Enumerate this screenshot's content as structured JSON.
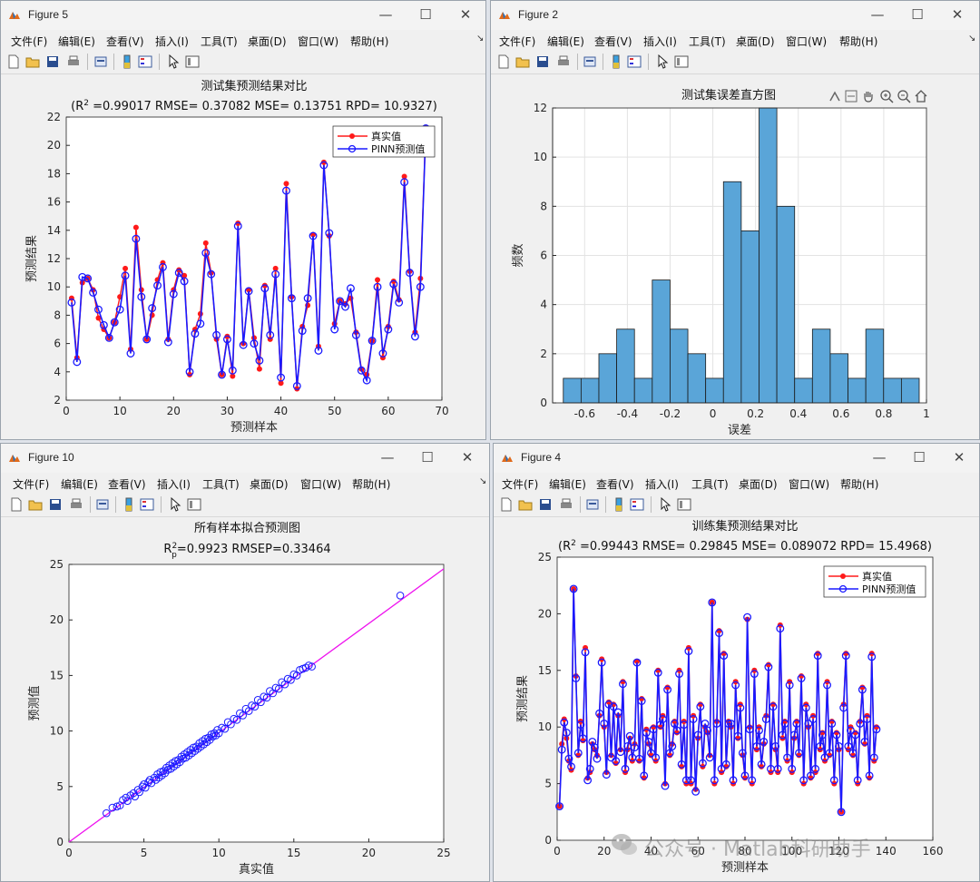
{
  "colors": {
    "real": "#ff1a1a",
    "pred": "#1a1aff",
    "hist": "#5aa5d8",
    "fitline": "#ee11ee"
  },
  "icons": [
    "app-icon",
    "minimize-icon",
    "maximize-icon",
    "close-icon",
    "new-file-icon",
    "open-file-icon",
    "save-icon",
    "print-icon",
    "print-preview-icon",
    "colorbar-icon",
    "legend-icon",
    "pointer-icon",
    "property-inspector-icon",
    "export-icon",
    "brush-icon",
    "pan-icon",
    "zoom-in-icon",
    "zoom-out-icon",
    "home-icon",
    "wechat-icon"
  ],
  "menus": [
    "文件(F)",
    "编辑(E)",
    "查看(V)",
    "插入(I)",
    "工具(T)",
    "桌面(D)",
    "窗口(W)",
    "帮助(H)"
  ],
  "windows": {
    "w1": {
      "title": "Figure 5"
    },
    "w2": {
      "title": "Figure 2"
    },
    "w3": {
      "title": "Figure 10"
    },
    "w4": {
      "title": "Figure 4"
    }
  },
  "controls": {
    "minimize": "—",
    "maximize": "☐",
    "close": "✕",
    "menu_arrow": "↘"
  },
  "watermark": {
    "text": "公众号 · Matlab科研助手"
  },
  "chart_data": [
    {
      "type": "line",
      "title": "测试集预测结果对比",
      "subtitle": {
        "prefix": "(R",
        "sup": "2",
        "rest": " =0.99017 RMSE= 0.37082 MSE= 0.13751 RPD= 10.9327)"
      },
      "xlabel": "预测样本",
      "ylabel": "预测结果",
      "xlim": [
        0,
        70
      ],
      "ylim": [
        2,
        22
      ],
      "xticks": [
        0,
        10,
        20,
        30,
        40,
        50,
        60,
        70
      ],
      "yticks": [
        2,
        4,
        6,
        8,
        10,
        12,
        14,
        16,
        18,
        20,
        22
      ],
      "legend": {
        "position": "top-right",
        "labels": [
          "真实值",
          "PINN预测值"
        ]
      },
      "series": [
        {
          "name": "真实值",
          "values": [
            9.2,
            5.0,
            10.3,
            10.6,
            9.8,
            7.8,
            7.0,
            6.4,
            7.5,
            9.3,
            11.3,
            5.6,
            14.2,
            9.8,
            6.3,
            8.0,
            10.5,
            11.7,
            6.3,
            9.8,
            11.2,
            10.8,
            3.8,
            7.0,
            8.1,
            13.1,
            11.0,
            6.3,
            3.8,
            6.5,
            3.7,
            14.5,
            6.0,
            9.8,
            6.4,
            4.2,
            10.1,
            6.3,
            11.3,
            3.2,
            17.3,
            9.3,
            2.8,
            7.2,
            8.7,
            13.7,
            5.8,
            18.8,
            13.6,
            7.4,
            9.0,
            8.8,
            9.2,
            6.8,
            4.2,
            3.8,
            6.2,
            10.5,
            5.0,
            7.2,
            10.4,
            9.1,
            17.8,
            11.1,
            6.8,
            10.6,
            21.2
          ]
        },
        {
          "name": "PINN预测值",
          "values": [
            8.9,
            4.7,
            10.7,
            10.6,
            9.6,
            8.4,
            7.3,
            6.4,
            7.5,
            8.4,
            10.8,
            5.3,
            13.4,
            9.3,
            6.3,
            8.5,
            10.1,
            11.4,
            6.1,
            9.5,
            11.0,
            10.4,
            4.0,
            6.7,
            7.4,
            12.4,
            10.9,
            6.6,
            3.8,
            6.3,
            4.1,
            14.3,
            5.9,
            9.7,
            6.0,
            4.8,
            9.9,
            6.6,
            10.9,
            3.6,
            16.8,
            9.2,
            3.0,
            6.9,
            9.2,
            13.6,
            5.5,
            18.6,
            13.8,
            7.0,
            9.0,
            8.6,
            9.9,
            6.6,
            4.1,
            3.4,
            6.2,
            10.0,
            5.3,
            7.0,
            10.2,
            8.9,
            17.4,
            11.0,
            6.5,
            10.0,
            21.2
          ]
        }
      ]
    },
    {
      "type": "bar",
      "title": "测试集误差直方图",
      "xlabel": "误差",
      "ylabel": "频数",
      "xlim": [
        -0.75,
        1.0
      ],
      "ylim": [
        0,
        12
      ],
      "xticks": [
        -0.6,
        -0.4,
        -0.2,
        0,
        0.2,
        0.4,
        0.6,
        0.8,
        1
      ],
      "yticks": [
        0,
        2,
        4,
        6,
        8,
        10,
        12
      ],
      "bin_start": -0.7,
      "bin_width": 0.0833,
      "values": [
        1,
        1,
        2,
        3,
        1,
        5,
        3,
        2,
        1,
        9,
        7,
        12,
        8,
        1,
        3,
        2,
        1,
        3,
        1,
        1
      ],
      "grid": true
    },
    {
      "type": "scatter",
      "title": "所有样本拟合预测图",
      "subtitle": {
        "prefix": "R",
        "sup": "2",
        "sub": "p",
        "rest": "=0.9923  RMSEP=0.33464"
      },
      "xlabel": "真实值",
      "ylabel": "预测值",
      "xlim": [
        0,
        25
      ],
      "ylim": [
        0,
        25
      ],
      "xticks": [
        0,
        5,
        10,
        15,
        20,
        25
      ],
      "yticks": [
        0,
        5,
        10,
        15,
        20,
        25
      ],
      "fit_line": [
        [
          0,
          0
        ],
        [
          25,
          24.6
        ]
      ],
      "points": [
        [
          2.5,
          2.6
        ],
        [
          2.9,
          3.1
        ],
        [
          3.2,
          3.2
        ],
        [
          3.4,
          3.3
        ],
        [
          3.6,
          3.8
        ],
        [
          3.8,
          4.0
        ],
        [
          3.9,
          3.7
        ],
        [
          4.1,
          4.2
        ],
        [
          4.3,
          4.4
        ],
        [
          4.4,
          4.1
        ],
        [
          4.6,
          4.7
        ],
        [
          4.7,
          4.5
        ],
        [
          4.9,
          5.0
        ],
        [
          5.0,
          5.2
        ],
        [
          5.1,
          4.9
        ],
        [
          5.3,
          5.4
        ],
        [
          5.4,
          5.6
        ],
        [
          5.5,
          5.3
        ],
        [
          5.7,
          5.8
        ],
        [
          5.8,
          5.6
        ],
        [
          5.9,
          6.1
        ],
        [
          6.0,
          5.8
        ],
        [
          6.1,
          6.3
        ],
        [
          6.2,
          6.0
        ],
        [
          6.3,
          6.4
        ],
        [
          6.4,
          6.2
        ],
        [
          6.5,
          6.7
        ],
        [
          6.6,
          6.5
        ],
        [
          6.7,
          6.9
        ],
        [
          6.8,
          6.6
        ],
        [
          6.9,
          7.1
        ],
        [
          7.0,
          6.8
        ],
        [
          7.1,
          7.3
        ],
        [
          7.2,
          7.0
        ],
        [
          7.3,
          7.4
        ],
        [
          7.4,
          7.2
        ],
        [
          7.5,
          7.7
        ],
        [
          7.6,
          7.5
        ],
        [
          7.7,
          7.9
        ],
        [
          7.8,
          7.6
        ],
        [
          7.9,
          8.1
        ],
        [
          8.0,
          7.8
        ],
        [
          8.1,
          8.3
        ],
        [
          8.2,
          8.0
        ],
        [
          8.3,
          8.5
        ],
        [
          8.4,
          8.2
        ],
        [
          8.5,
          8.6
        ],
        [
          8.6,
          8.4
        ],
        [
          8.7,
          8.9
        ],
        [
          8.8,
          8.6
        ],
        [
          8.9,
          9.1
        ],
        [
          9.0,
          8.8
        ],
        [
          9.1,
          9.3
        ],
        [
          9.2,
          9.0
        ],
        [
          9.3,
          9.4
        ],
        [
          9.4,
          9.2
        ],
        [
          9.5,
          9.7
        ],
        [
          9.6,
          9.5
        ],
        [
          9.7,
          9.8
        ],
        [
          9.8,
          9.6
        ],
        [
          9.9,
          10.1
        ],
        [
          10.0,
          9.8
        ],
        [
          10.2,
          10.3
        ],
        [
          10.4,
          10.2
        ],
        [
          10.6,
          10.8
        ],
        [
          10.8,
          10.6
        ],
        [
          11.0,
          11.1
        ],
        [
          11.2,
          11.0
        ],
        [
          11.4,
          11.6
        ],
        [
          11.6,
          11.4
        ],
        [
          11.8,
          12.0
        ],
        [
          12.0,
          11.8
        ],
        [
          12.2,
          12.3
        ],
        [
          12.4,
          12.2
        ],
        [
          12.6,
          12.8
        ],
        [
          12.8,
          12.6
        ],
        [
          13.0,
          13.1
        ],
        [
          13.2,
          13.0
        ],
        [
          13.4,
          13.6
        ],
        [
          13.6,
          13.4
        ],
        [
          13.8,
          13.9
        ],
        [
          14.0,
          13.8
        ],
        [
          14.2,
          14.4
        ],
        [
          14.4,
          14.2
        ],
        [
          14.6,
          14.7
        ],
        [
          14.8,
          14.6
        ],
        [
          15.0,
          15.1
        ],
        [
          15.2,
          15.0
        ],
        [
          15.4,
          15.5
        ],
        [
          15.6,
          15.6
        ],
        [
          15.8,
          15.7
        ],
        [
          16.0,
          15.9
        ],
        [
          16.2,
          15.8
        ],
        [
          22.1,
          22.2
        ]
      ]
    },
    {
      "type": "line",
      "title": "训练集预测结果对比",
      "subtitle": {
        "prefix": "(R",
        "sup": "2",
        "rest": " =0.99443 RMSE= 0.29845 MSE= 0.089072 RPD= 15.4968)"
      },
      "xlabel": "预测样本",
      "ylabel": "预测结果",
      "xlim": [
        0,
        160
      ],
      "ylim": [
        0,
        25
      ],
      "xticks": [
        0,
        20,
        40,
        60,
        80,
        100,
        120,
        140,
        160
      ],
      "yticks": [
        0,
        5,
        10,
        15,
        20,
        25
      ],
      "legend": {
        "position": "top-right",
        "labels": [
          "真实值",
          "PINN预测值"
        ]
      },
      "series": [
        {
          "name": "真实值",
          "values": [
            3.0,
            8.5,
            10.7,
            9.0,
            7.0,
            6.2,
            22.2,
            14.5,
            7.5,
            10.5,
            8.8,
            17.0,
            5.5,
            6.0,
            8.5,
            8.0,
            7.5,
            11.0,
            16.0,
            10.0,
            6.0,
            12.2,
            7.5,
            12.0,
            6.8,
            11.0,
            8.0,
            14.0,
            6.0,
            8.0,
            9.0,
            7.0,
            8.5,
            15.8,
            7.0,
            12.5,
            5.5,
            9.8,
            8.5,
            7.5,
            10.0,
            7.0,
            15.0,
            10.0,
            11.0,
            5.0,
            13.5,
            7.5,
            8.5,
            10.5,
            9.5,
            15.0,
            6.5,
            10.5,
            5.0,
            17.0,
            5.0,
            11.0,
            4.5,
            9.0,
            12.0,
            6.5,
            10.0,
            9.5,
            7.5,
            21.0,
            5.0,
            10.5,
            18.5,
            6.0,
            16.5,
            6.5,
            10.5,
            10.0,
            5.0,
            14.0,
            9.0,
            12.0,
            7.5,
            5.5,
            19.5,
            10.0,
            5.0,
            15.0,
            8.0,
            10.0,
            6.5,
            8.5,
            11.0,
            15.5,
            6.0,
            12.0,
            8.0,
            6.0,
            19.0,
            9.0,
            10.5,
            7.0,
            14.0,
            6.0,
            9.0,
            10.5,
            7.5,
            14.5,
            5.0,
            12.0,
            10.0,
            5.5,
            11.0,
            6.0,
            16.5,
            8.0,
            9.5,
            7.0,
            14.0,
            7.5,
            10.5,
            5.0,
            9.5,
            8.0,
            2.5,
            12.0,
            16.5,
            8.0,
            10.0,
            7.5,
            9.5,
            5.0,
            10.5,
            13.5,
            8.5,
            11.0,
            5.5,
            16.5,
            7.0,
            10.0
          ]
        },
        {
          "name": "PINN预测值",
          "values": [
            3.0,
            8.0,
            10.4,
            9.5,
            7.2,
            6.5,
            22.2,
            14.3,
            7.7,
            10.2,
            9.0,
            16.6,
            5.3,
            6.3,
            8.7,
            8.2,
            7.2,
            11.2,
            15.7,
            10.3,
            5.8,
            12.0,
            7.3,
            11.8,
            7.0,
            11.3,
            7.8,
            13.8,
            6.3,
            8.3,
            9.2,
            7.3,
            8.2,
            15.7,
            7.2,
            12.3,
            5.7,
            9.5,
            8.7,
            7.7,
            9.8,
            7.3,
            14.8,
            10.2,
            10.7,
            4.8,
            13.3,
            7.7,
            8.3,
            10.3,
            9.7,
            14.7,
            6.7,
            10.2,
            5.3,
            16.7,
            5.3,
            10.7,
            4.3,
            9.3,
            11.8,
            6.8,
            10.3,
            9.7,
            7.3,
            21.0,
            5.3,
            10.3,
            18.3,
            6.3,
            16.3,
            6.7,
            10.3,
            10.3,
            5.3,
            13.7,
            9.2,
            11.7,
            7.7,
            5.7,
            19.7,
            9.8,
            5.3,
            14.7,
            8.3,
            9.7,
            6.7,
            8.7,
            10.7,
            15.3,
            6.3,
            11.8,
            8.3,
            6.3,
            18.7,
            9.3,
            10.3,
            7.3,
            13.7,
            6.3,
            9.3,
            10.3,
            7.7,
            14.3,
            5.3,
            11.7,
            10.3,
            5.7,
            10.7,
            6.3,
            16.3,
            8.3,
            9.3,
            7.3,
            13.7,
            7.7,
            10.3,
            5.3,
            9.3,
            8.3,
            2.5,
            11.7,
            16.3,
            8.3,
            9.7,
            7.7,
            9.3,
            5.3,
            10.3,
            13.3,
            8.7,
            10.7,
            5.7,
            16.2,
            7.3,
            9.8
          ]
        }
      ]
    }
  ]
}
